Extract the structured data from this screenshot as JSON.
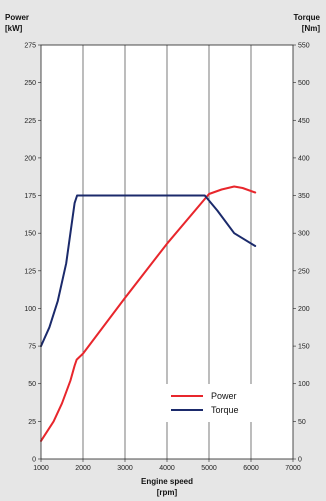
{
  "chart_data": {
    "type": "line",
    "left_axis_title": [
      "Power",
      "[kW]"
    ],
    "right_axis_title": [
      "Torque",
      "[Nm]"
    ],
    "x_axis_title": [
      "Engine speed",
      "[rpm]"
    ],
    "xlim": [
      1000,
      7000
    ],
    "x_ticks": [
      1000,
      2000,
      3000,
      4000,
      5000,
      6000,
      7000
    ],
    "ylim_left": [
      0,
      275
    ],
    "y_ticks_left": [
      0,
      25,
      50,
      75,
      100,
      125,
      150,
      175,
      200,
      225,
      250,
      275
    ],
    "ylim_right": [
      0,
      550
    ],
    "y_ticks_right": [
      0,
      50,
      100,
      150,
      200,
      250,
      300,
      350,
      400,
      450,
      500,
      550
    ],
    "grid": "vertical",
    "legend_position": "bottom-right",
    "series": [
      {
        "name": "Power",
        "axis": "left",
        "color": "#e8262c",
        "x": [
          1000,
          1300,
          1500,
          1700,
          1800,
          1850,
          2000,
          3000,
          4000,
          5000,
          5300,
          5600,
          5800,
          6100
        ],
        "y": [
          12,
          25,
          37,
          52,
          62,
          66,
          70,
          107,
          143,
          176,
          179,
          181,
          180,
          177
        ]
      },
      {
        "name": "Torque",
        "axis": "right",
        "color": "#1b2a6b",
        "x": [
          1000,
          1200,
          1400,
          1600,
          1700,
          1800,
          1860,
          1900,
          3000,
          4000,
          4900,
          5200,
          5600,
          6100
        ],
        "y": [
          150,
          175,
          210,
          260,
          300,
          340,
          350,
          350,
          350,
          350,
          350,
          330,
          300,
          283
        ]
      }
    ]
  }
}
